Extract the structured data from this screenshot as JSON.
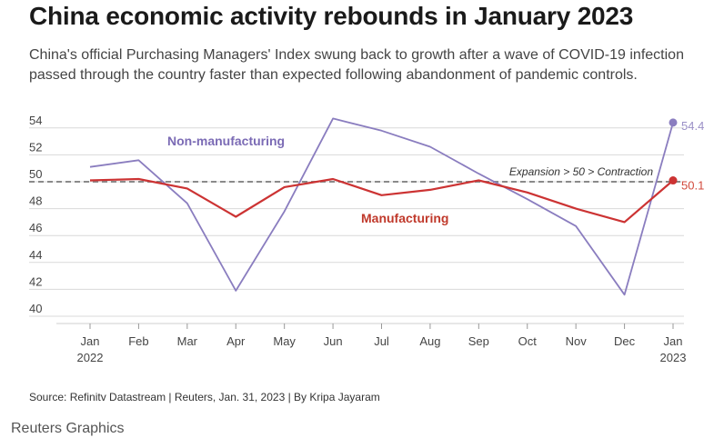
{
  "header": {
    "title": "China economic activity rebounds in January 2023",
    "subtitle": "China's official Purchasing Managers' Index swung back to growth after a wave of COVID-19 infection passed through the country faster than expected following abandonment of pandemic controls."
  },
  "footer": {
    "source": "Source: Refinitv Datastream | Reuters, Jan. 31, 2023 | By Kripa Jayaram",
    "brand": "Reuters Graphics"
  },
  "chart_data": {
    "type": "line",
    "x": [
      "Jan",
      "Feb",
      "Mar",
      "Apr",
      "May",
      "Jun",
      "Jul",
      "Aug",
      "Sep",
      "Oct",
      "Nov",
      "Dec",
      "Jan"
    ],
    "x_sublabels": [
      "2022",
      "",
      "",
      "",
      "",
      "",
      "",
      "",
      "",
      "",
      "",
      "",
      "2023"
    ],
    "yticks": [
      40,
      42,
      44,
      46,
      48,
      50,
      52,
      54
    ],
    "ylim": [
      40,
      55
    ],
    "grid": true,
    "reference_line": {
      "value": 50,
      "label": "Expansion > 50 > Contraction"
    },
    "series": [
      {
        "name": "Non-manufacturing",
        "color": "#8a7dbf",
        "values": [
          51.1,
          51.6,
          48.4,
          41.9,
          47.8,
          54.7,
          53.8,
          52.6,
          50.6,
          48.7,
          46.7,
          41.6,
          54.4
        ],
        "end_label": "54.4"
      },
      {
        "name": "Manufacturing",
        "color": "#cc3333",
        "values": [
          50.1,
          50.2,
          49.5,
          47.4,
          49.6,
          50.2,
          49.0,
          49.4,
          50.1,
          49.2,
          48.0,
          47.0,
          50.1
        ],
        "end_label": "50.1"
      }
    ]
  }
}
